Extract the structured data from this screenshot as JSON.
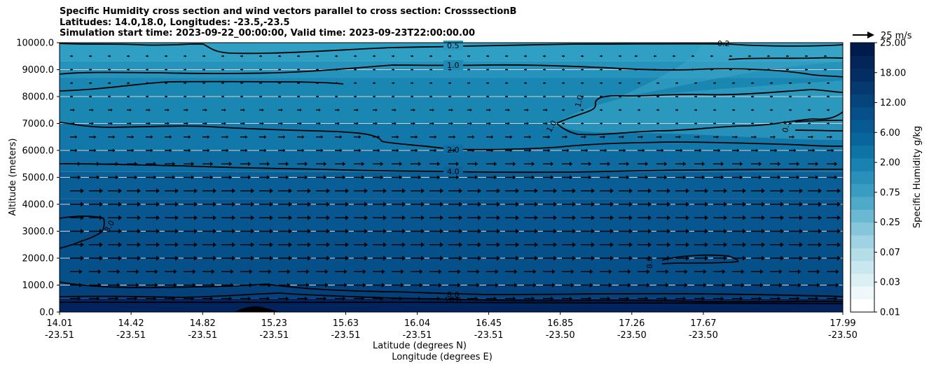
{
  "titles": [
    "Specific Humidity cross section and wind vectors parallel to cross section: CrosssectionB",
    "Latitudes: 14.0,18.0, Longitudes: -23.5,-23.5",
    "Simulation start time: 2023-09-22_00:00:00, Valid time: 2023-09-23T22:00:00.00"
  ],
  "chart_data": {
    "type": "heatmap",
    "xlabel": "Latitude (degrees N)",
    "xlabel2": "Longitude (degrees E)",
    "ylabel": "Altitude (meters)",
    "ylim": [
      0,
      10000
    ],
    "y_ticks": [
      "0.0",
      "1000.0",
      "2000.0",
      "3000.0",
      "4000.0",
      "5000.0",
      "6000.0",
      "7000.0",
      "8000.0",
      "9000.0",
      "10000.0"
    ],
    "x_ticks": [
      {
        "lat": "14.01",
        "lon": "-23.51"
      },
      {
        "lat": "14.42",
        "lon": "-23.51"
      },
      {
        "lat": "14.82",
        "lon": "-23.51"
      },
      {
        "lat": "15.23",
        "lon": "-23.51"
      },
      {
        "lat": "15.63",
        "lon": "-23.51"
      },
      {
        "lat": "16.04",
        "lon": "-23.51"
      },
      {
        "lat": "16.45",
        "lon": "-23.51"
      },
      {
        "lat": "16.85",
        "lon": "-23.50"
      },
      {
        "lat": "17.26",
        "lon": "-23.50"
      },
      {
        "lat": "17.67",
        "lon": "-23.50"
      },
      {
        "lat": "17.99",
        "lon": "-23.50"
      }
    ],
    "colorbar": {
      "label": "Specific Humidity g/kg",
      "tick_labels": [
        "0.01",
        "0.03",
        "0.07",
        "0.25",
        "0.75",
        "2.00",
        "6.00",
        "12.00",
        "18.00",
        "25.00"
      ]
    },
    "quiver_key": {
      "label": "25 m/s"
    },
    "grid": true,
    "contour_labels": [
      "0.5",
      "1.0",
      "2.0",
      "4.0",
      "8.0",
      "16.0",
      "0.2",
      "1.0",
      "1.0",
      "0.5",
      "8.0",
      "8.0"
    ]
  }
}
